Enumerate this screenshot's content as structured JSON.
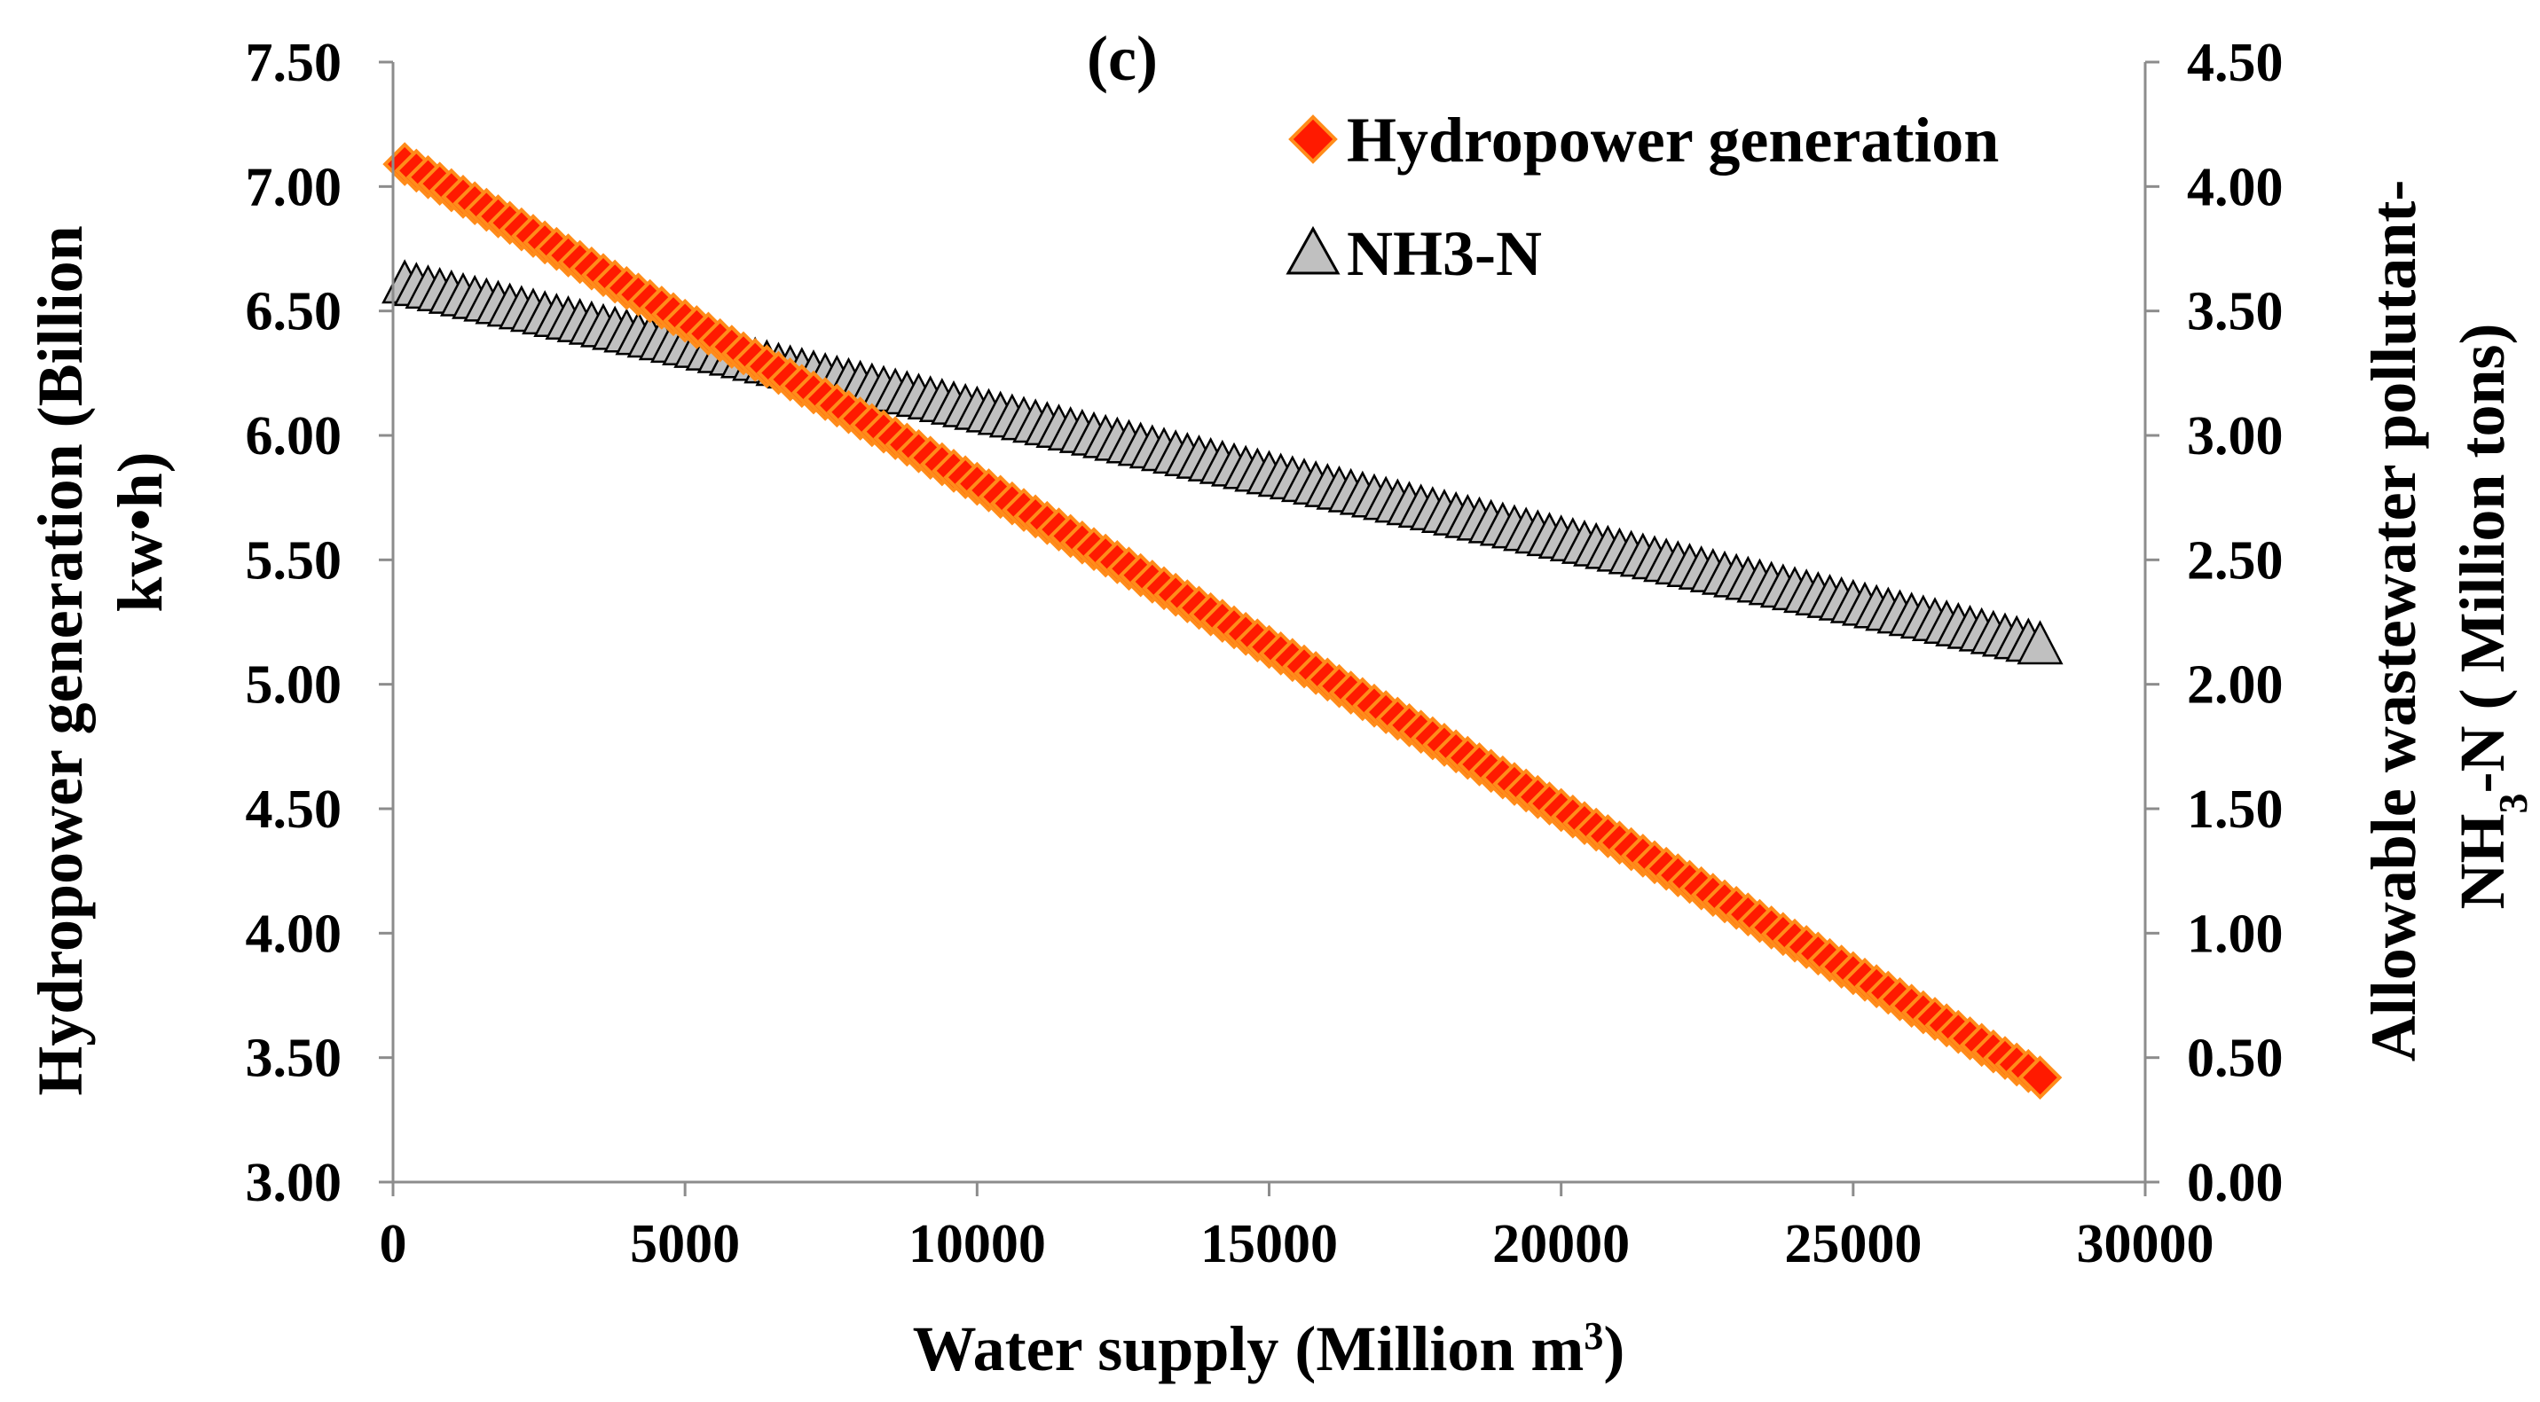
{
  "chart_data": {
    "type": "scatter",
    "panel_label": "(c)",
    "x_axis": {
      "label_main": "Water supply (Million m",
      "label_sup": "3",
      "label_end": ")",
      "min": 0,
      "max": 30000,
      "tick_values": [
        0,
        5000,
        10000,
        15000,
        20000,
        25000,
        30000
      ],
      "tick_labels": [
        "0",
        "5000",
        "10000",
        "15000",
        "20000",
        "25000",
        "30000"
      ]
    },
    "y_axis_left": {
      "label_line1": "Hydropower generation  (Billion",
      "label_line2": "kw•h)",
      "min": 3.0,
      "max": 7.5,
      "tick_values": [
        3.0,
        3.5,
        4.0,
        4.5,
        5.0,
        5.5,
        6.0,
        6.5,
        7.0,
        7.5
      ],
      "tick_labels": [
        "3.00",
        "3.50",
        "4.00",
        "4.50",
        "5.00",
        "5.50",
        "6.00",
        "6.50",
        "7.00",
        "7.50"
      ]
    },
    "y_axis_right": {
      "label_line1": "Allowable wastewater pollutant-",
      "label_line2_a": "NH",
      "label_line2_sub": "3",
      "label_line2_b": "-N ( Million tons)",
      "min": 0.0,
      "max": 4.5,
      "tick_values": [
        0.0,
        0.5,
        1.0,
        1.5,
        2.0,
        2.5,
        3.0,
        3.5,
        4.0,
        4.5
      ],
      "tick_labels": [
        "0.00",
        "0.50",
        "1.00",
        "1.50",
        "2.00",
        "2.50",
        "3.00",
        "3.50",
        "4.00",
        "4.50"
      ]
    },
    "legend_position": "top-right",
    "series": [
      {
        "name": "Hydropower generation",
        "axis": "left",
        "marker": "diamond",
        "fill": "#ff1a00",
        "stroke": "#ff8c1a",
        "x_start": 200,
        "x_end": 28200,
        "x_step": 200,
        "y_start": 7.09,
        "y_end": 3.42
      },
      {
        "name": "NH3-N",
        "axis": "right",
        "marker": "triangle",
        "fill": "#c0c0c0",
        "stroke": "#000000",
        "x_start": 200,
        "x_end": 28200,
        "x_step": 200,
        "y_start": 3.6,
        "y_end": 2.15
      }
    ]
  }
}
